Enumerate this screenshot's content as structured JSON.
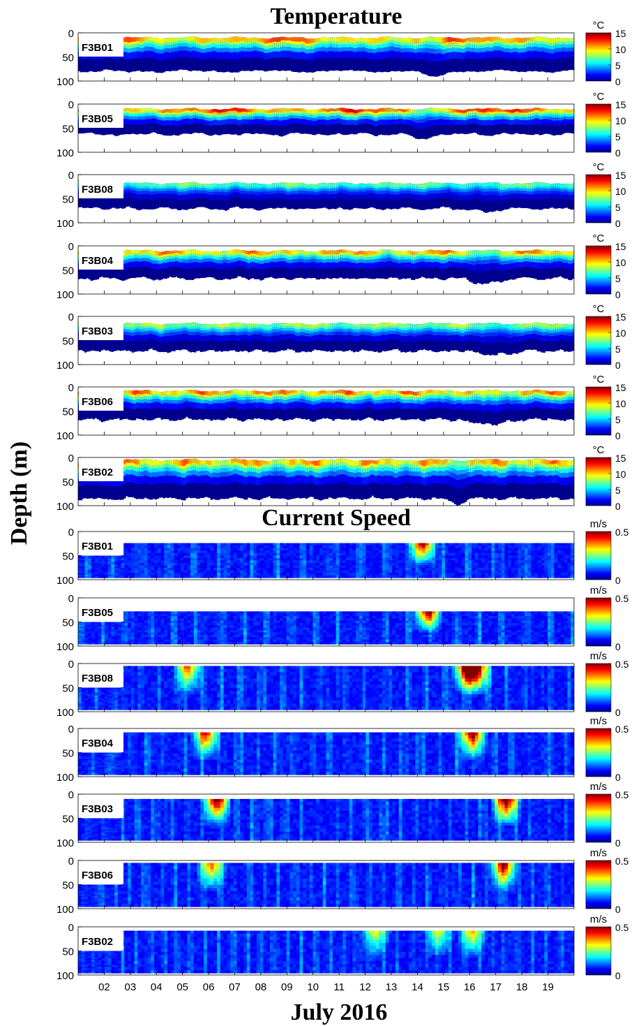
{
  "chart_data": [
    {
      "type": "heatmap",
      "title": "Temperature",
      "variable": "temperature",
      "colorbar": {
        "unit": "°C",
        "ticks": [
          0,
          5,
          10,
          15
        ],
        "range": [
          0,
          15
        ]
      },
      "panels": [
        {
          "station": "F3B01",
          "y_range_m": [
            0,
            100
          ]
        },
        {
          "station": "F3B05",
          "y_range_m": [
            0,
            100
          ]
        },
        {
          "station": "F3B08",
          "y_range_m": [
            0,
            100
          ]
        },
        {
          "station": "F3B04",
          "y_range_m": [
            0,
            100
          ]
        },
        {
          "station": "F3B03",
          "y_range_m": [
            0,
            100
          ]
        },
        {
          "station": "F3B06",
          "y_range_m": [
            0,
            100
          ]
        },
        {
          "station": "F3B02",
          "y_range_m": [
            0,
            100
          ]
        }
      ]
    },
    {
      "type": "heatmap",
      "title": "Current Speed",
      "variable": "current_speed",
      "colorbar": {
        "unit": "m/s",
        "ticks": [
          0,
          0.5
        ],
        "range": [
          0,
          0.5
        ]
      },
      "panels": [
        {
          "station": "F3B01",
          "y_range_m": [
            0,
            100
          ]
        },
        {
          "station": "F3B05",
          "y_range_m": [
            0,
            100
          ]
        },
        {
          "station": "F3B08",
          "y_range_m": [
            0,
            100
          ]
        },
        {
          "station": "F3B04",
          "y_range_m": [
            0,
            100
          ]
        },
        {
          "station": "F3B03",
          "y_range_m": [
            0,
            100
          ]
        },
        {
          "station": "F3B06",
          "y_range_m": [
            0,
            100
          ]
        },
        {
          "station": "F3B02",
          "y_range_m": [
            0,
            100
          ]
        }
      ]
    }
  ],
  "axes": {
    "ylabel": "Depth (m)",
    "xlabel": "July 2016",
    "yticks": [
      "0",
      "50",
      "100"
    ],
    "xtick_labels": [
      "02",
      "03",
      "04",
      "05",
      "06",
      "07",
      "08",
      "09",
      "10",
      "11",
      "12",
      "13",
      "14",
      "15",
      "16",
      "17",
      "18",
      "19"
    ],
    "x_range_day": [
      1,
      20
    ]
  },
  "colors": {
    "background": "#ffffff",
    "no_data": "#ffffff",
    "deep_blue": "#00008f",
    "blue": "#0000ff",
    "cyan": "#00ffff",
    "yellow": "#ffff00",
    "red": "#ff0000",
    "dark_red": "#800000"
  }
}
